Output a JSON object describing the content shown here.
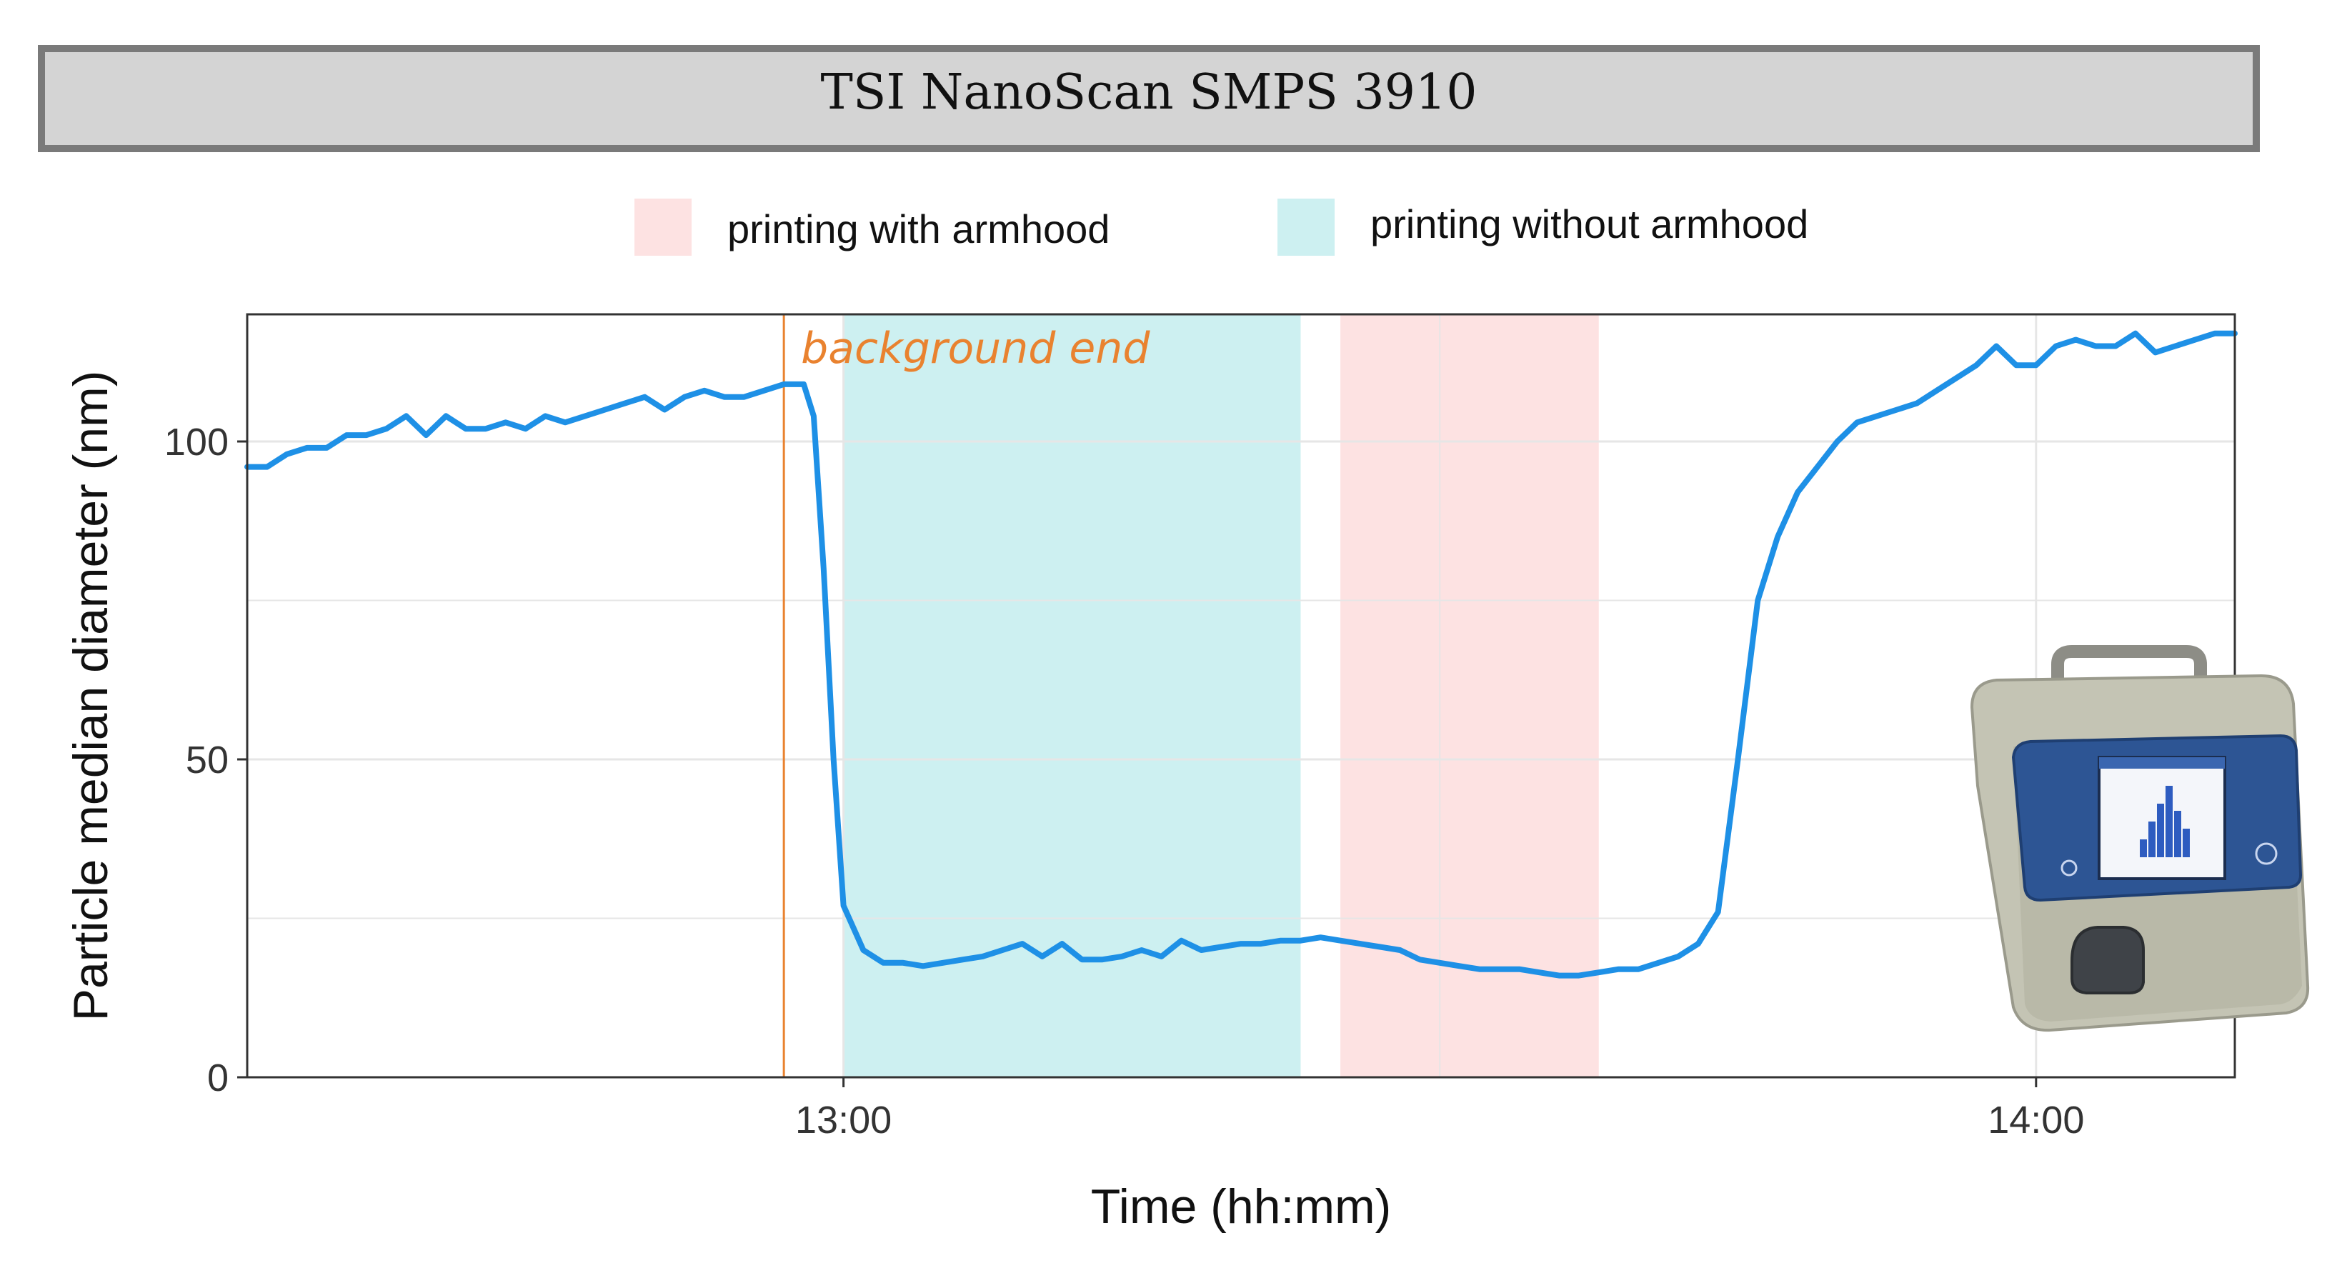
{
  "header": {
    "title": "TSI NanoScan SMPS 3910"
  },
  "legend": {
    "items": [
      {
        "label": "printing with armhood",
        "color": "#fde2e2"
      },
      {
        "label": "printing without armhood",
        "color": "#cdf0f1"
      }
    ]
  },
  "colors": {
    "line": "#1e90e6",
    "background_marker": "#e9822f",
    "grid": "#e6e6e6",
    "pink_band": "#fde2e2",
    "cyan_band": "#cdf0f1"
  },
  "chart_data": {
    "type": "line",
    "xlabel": "Time (hh:mm)",
    "ylabel": "Particle median diameter (nm)",
    "x_ticks": [
      "13:00",
      "14:00"
    ],
    "y_ticks": [
      "0",
      "50",
      "100"
    ],
    "xlim": [
      "12:30",
      "14:10"
    ],
    "ylim": [
      0,
      120
    ],
    "grid": true,
    "legend_position": "top",
    "annotation": {
      "text": "background end",
      "x": "12:57"
    },
    "bands": [
      {
        "label": "printing without armhood",
        "start": "13:00",
        "end": "13:23"
      },
      {
        "label": "printing with armhood",
        "start": "13:25",
        "end": "13:38"
      }
    ],
    "series": [
      {
        "values": [
          [
            "12:30",
            96
          ],
          [
            "12:31",
            96
          ],
          [
            "12:32",
            98
          ],
          [
            "12:33",
            99
          ],
          [
            "12:34",
            99
          ],
          [
            "12:35",
            101
          ],
          [
            "12:36",
            101
          ],
          [
            "12:37",
            102
          ],
          [
            "12:38",
            104
          ],
          [
            "12:39",
            101
          ],
          [
            "12:40",
            104
          ],
          [
            "12:41",
            102
          ],
          [
            "12:42",
            102
          ],
          [
            "12:43",
            103
          ],
          [
            "12:44",
            102
          ],
          [
            "12:45",
            104
          ],
          [
            "12:46",
            103
          ],
          [
            "12:47",
            104
          ],
          [
            "12:48",
            105
          ],
          [
            "12:49",
            106
          ],
          [
            "12:50",
            107
          ],
          [
            "12:51",
            105
          ],
          [
            "12:52",
            107
          ],
          [
            "12:53",
            108
          ],
          [
            "12:54",
            107
          ],
          [
            "12:55",
            107
          ],
          [
            "12:56",
            108
          ],
          [
            "12:57",
            109
          ],
          [
            "12:58",
            109
          ],
          [
            "12:58.5",
            104
          ],
          [
            "12:59",
            80
          ],
          [
            "12:59.5",
            50
          ],
          [
            "13:00",
            27
          ],
          [
            "13:01",
            20
          ],
          [
            "13:02",
            18
          ],
          [
            "13:03",
            18
          ],
          [
            "13:04",
            17.5
          ],
          [
            "13:05",
            18
          ],
          [
            "13:06",
            18.5
          ],
          [
            "13:07",
            19
          ],
          [
            "13:08",
            20
          ],
          [
            "13:09",
            21
          ],
          [
            "13:10",
            19
          ],
          [
            "13:11",
            21
          ],
          [
            "13:12",
            18.5
          ],
          [
            "13:13",
            18.5
          ],
          [
            "13:14",
            19
          ],
          [
            "13:15",
            20
          ],
          [
            "13:16",
            19
          ],
          [
            "13:17",
            21.5
          ],
          [
            "13:18",
            20
          ],
          [
            "13:19",
            20.5
          ],
          [
            "13:20",
            21
          ],
          [
            "13:21",
            21
          ],
          [
            "13:22",
            21.5
          ],
          [
            "13:23",
            21.5
          ],
          [
            "13:24",
            22
          ],
          [
            "13:25",
            21.5
          ],
          [
            "13:26",
            21
          ],
          [
            "13:27",
            20.5
          ],
          [
            "13:28",
            20
          ],
          [
            "13:29",
            18.5
          ],
          [
            "13:30",
            18
          ],
          [
            "13:31",
            17.5
          ],
          [
            "13:32",
            17
          ],
          [
            "13:33",
            17
          ],
          [
            "13:34",
            17
          ],
          [
            "13:35",
            16.5
          ],
          [
            "13:36",
            16
          ],
          [
            "13:37",
            16
          ],
          [
            "13:38",
            16.5
          ],
          [
            "13:39",
            17
          ],
          [
            "13:40",
            17
          ],
          [
            "13:41",
            18
          ],
          [
            "13:42",
            19
          ],
          [
            "13:43",
            21
          ],
          [
            "13:44",
            26
          ],
          [
            "13:45",
            50
          ],
          [
            "13:46",
            75
          ],
          [
            "13:47",
            85
          ],
          [
            "13:48",
            92
          ],
          [
            "13:49",
            96
          ],
          [
            "13:50",
            100
          ],
          [
            "13:51",
            103
          ],
          [
            "13:52",
            104
          ],
          [
            "13:53",
            105
          ],
          [
            "13:54",
            106
          ],
          [
            "13:55",
            108
          ],
          [
            "13:56",
            110
          ],
          [
            "13:57",
            112
          ],
          [
            "13:58",
            115
          ],
          [
            "13:59",
            112
          ],
          [
            "14:00",
            112
          ],
          [
            "14:01",
            115
          ],
          [
            "14:02",
            116
          ],
          [
            "14:03",
            115
          ],
          [
            "14:04",
            115
          ],
          [
            "14:05",
            117
          ],
          [
            "14:06",
            114
          ],
          [
            "14:07",
            115
          ],
          [
            "14:08",
            116
          ],
          [
            "14:09",
            117
          ],
          [
            "14:10",
            117
          ]
        ]
      }
    ]
  }
}
